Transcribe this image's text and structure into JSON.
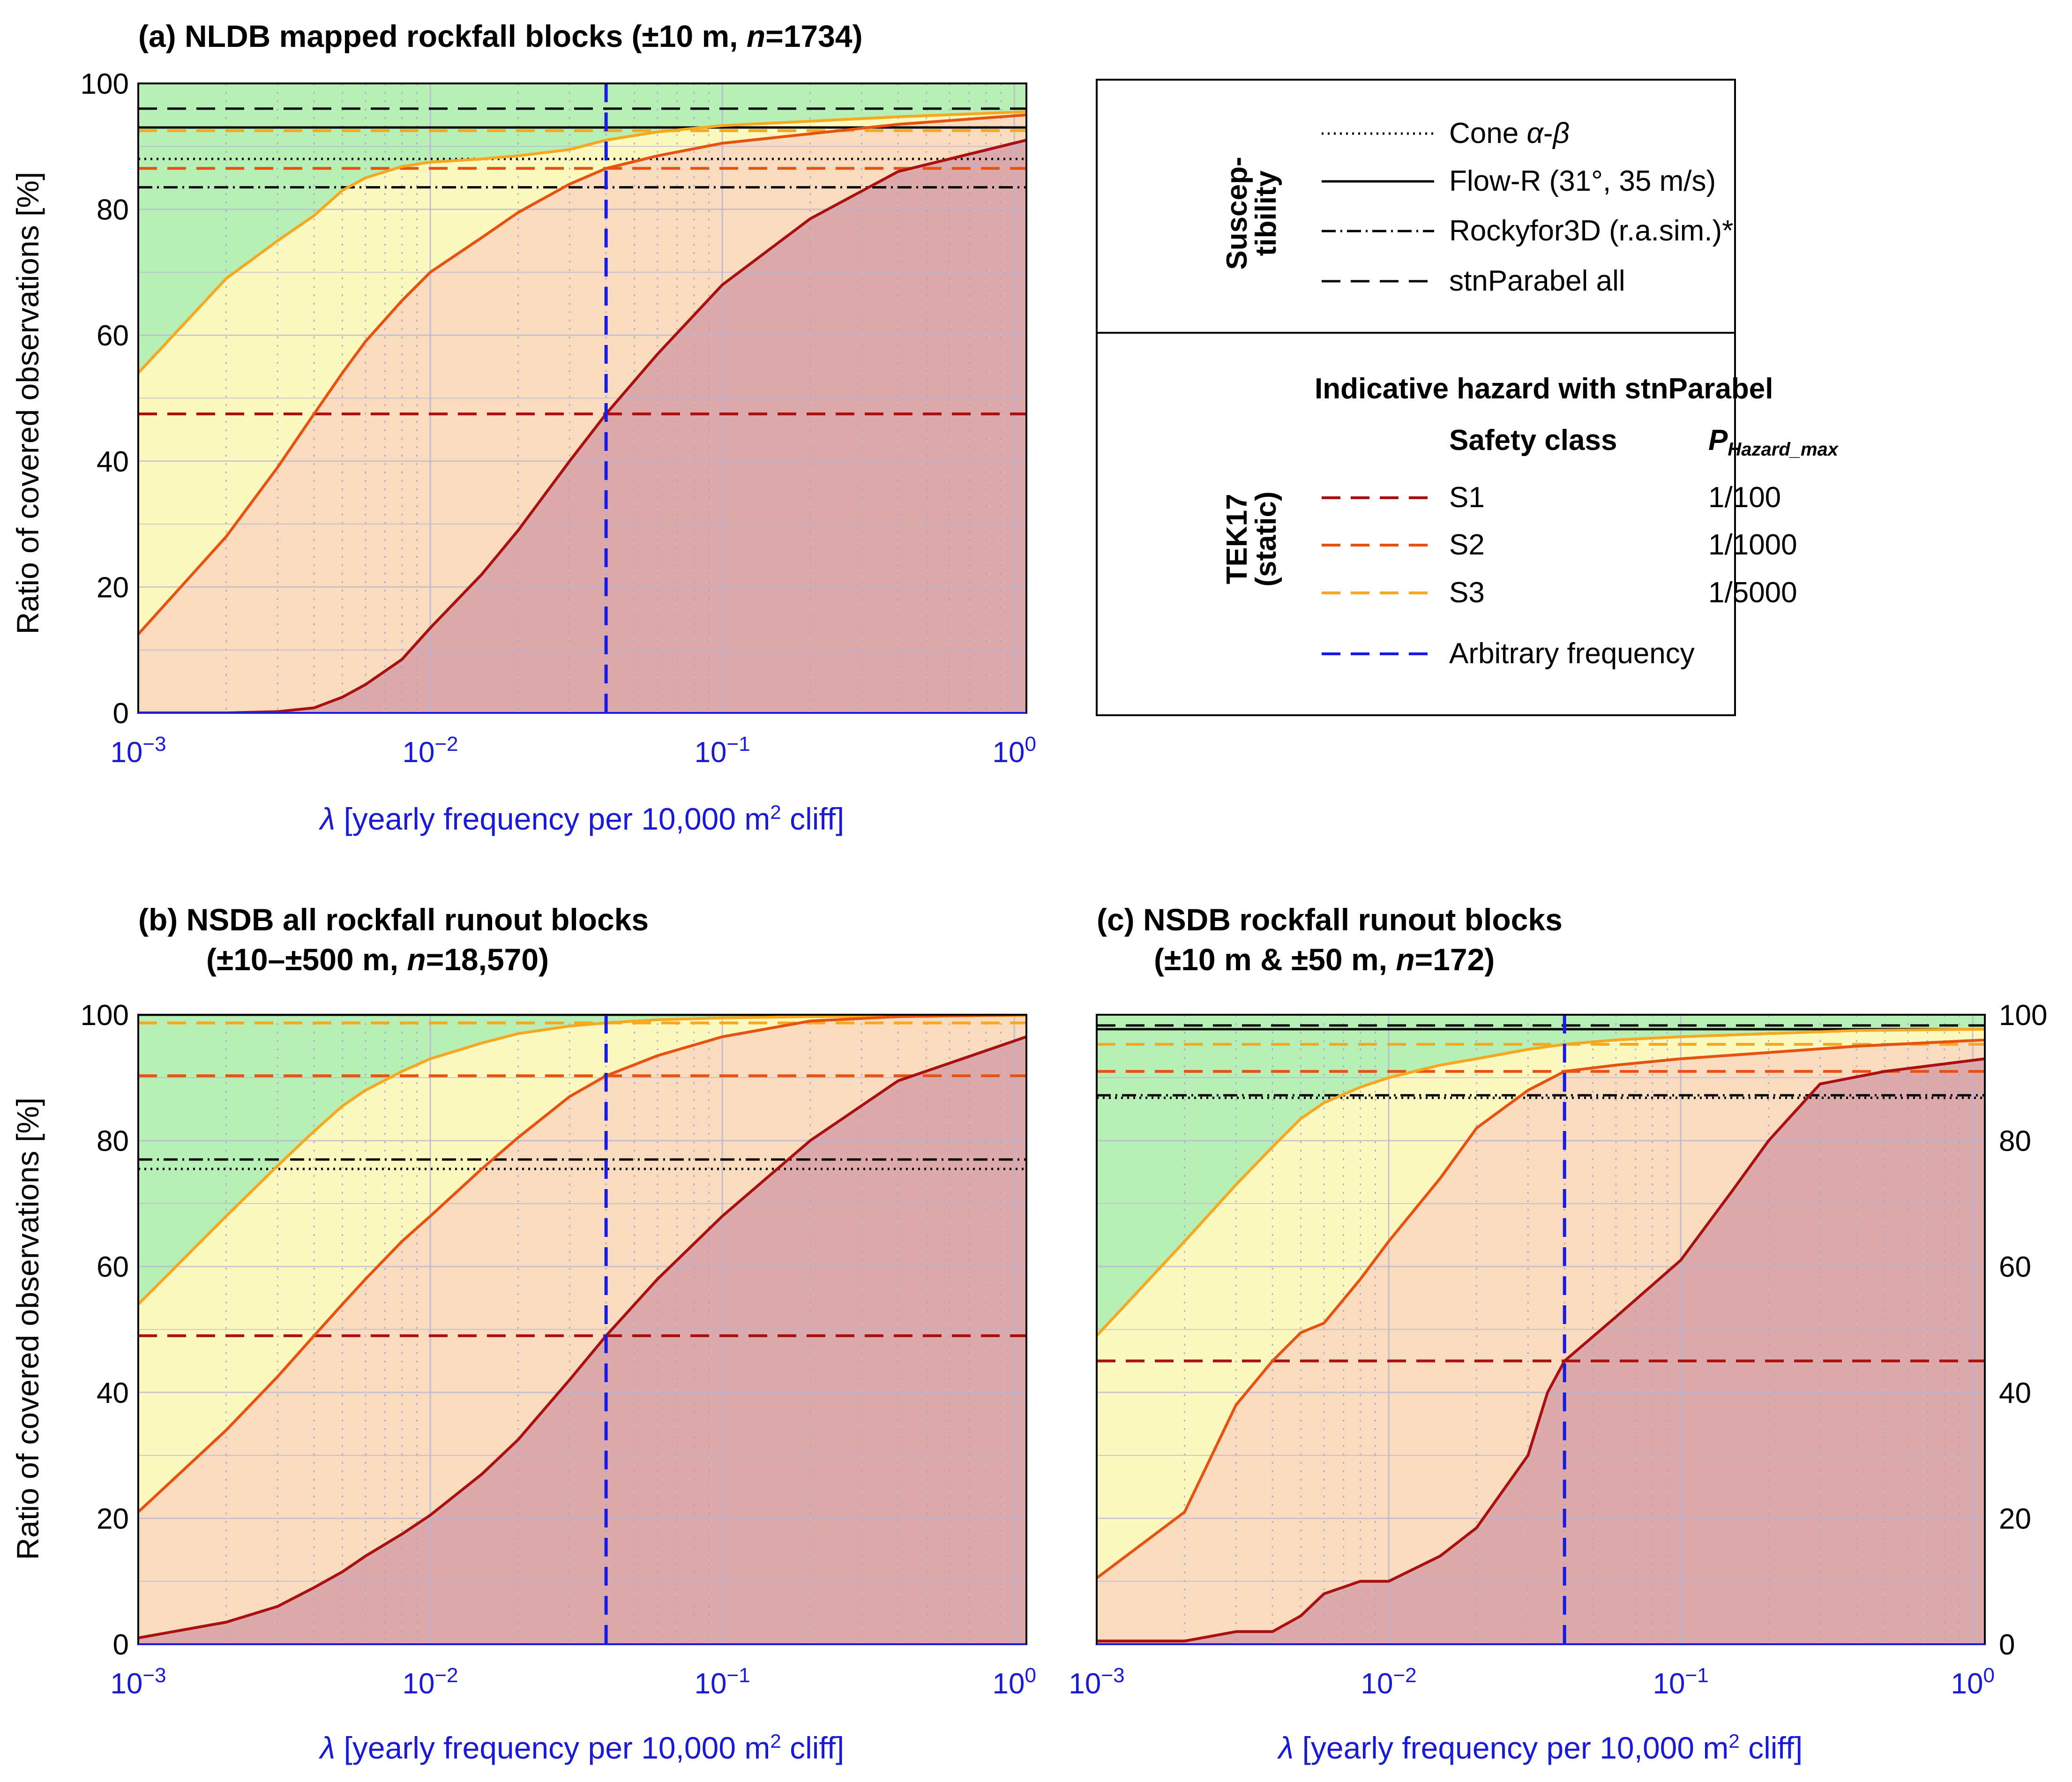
{
  "colors": {
    "green": "#b7efb7",
    "yellow": "#fbf9c0",
    "orange_fill": "#f9dcc0",
    "red_fill": "#dcaaaa",
    "s1": "#aa1010",
    "s2": "#e8520f",
    "s3": "#f7a81e",
    "blue": "#1a1ae6",
    "black": "#000000"
  },
  "x_axis": {
    "label_prefix": "λ",
    "label_main": "[yearly frequency per 10,000 m",
    "label_sup": "2",
    "label_end": " cliff]",
    "tick_base": "10",
    "tick_exponents": [
      "−3",
      "−2",
      "−1",
      "0"
    ]
  },
  "y_axis": {
    "label": "Ratio of covered observations [%]",
    "ticks": [
      "0",
      "20",
      "40",
      "60",
      "80",
      "100"
    ]
  },
  "legend": {
    "group1_label_line1": "Suscep-",
    "group1_label_line2": "tibility",
    "group2_label_line1": "TEK17",
    "group2_label_line2": "(static)",
    "cone_label": "Cone ",
    "cone_alpha": "α",
    "cone_dash": "-",
    "cone_beta": "β",
    "flowr_label": "Flow-R (31°, 35 m/s)",
    "rocky_label": "Rockyfor3D (r.a.sim.)*",
    "stn_label": "stnParabel all",
    "hazard_title": "Indicative hazard with stnParabel",
    "safety_header": "Safety class",
    "p_header_main": "P",
    "p_header_sub": "Hazard_max",
    "s1_label": "S1",
    "s1_p": "1/100",
    "s2_label": "S2",
    "s2_p": "1/1000",
    "s3_label": "S3",
    "s3_p": "1/5000",
    "arb_label": "Arbitrary frequency"
  },
  "chart_data": [
    {
      "id": "a",
      "type": "line",
      "title_prefix": "(a) NLDB mapped rockfall blocks (±10 m, ",
      "title_n": "n",
      "title_suffix": "=1734)",
      "title_line2": "",
      "xscale": "log",
      "xlim": [
        0.001,
        1.1
      ],
      "ylim": [
        0,
        100
      ],
      "arbitrary_frequency": 0.04,
      "susceptibility": {
        "cone": 88,
        "flowr": 93,
        "rocky": 83.5,
        "stn_all": 96
      },
      "safety_levels": {
        "S1": 47.5,
        "S2": 86.5,
        "S3": 92.5
      },
      "series": [
        {
          "name": "S3",
          "x": [
            0.001,
            0.002,
            0.003,
            0.004,
            0.005,
            0.006,
            0.008,
            0.01,
            0.015,
            0.02,
            0.03,
            0.04,
            0.06,
            0.1,
            0.2,
            0.4,
            1.1
          ],
          "y": [
            54,
            69,
            75,
            79,
            83,
            85,
            86.8,
            87.5,
            88,
            88.5,
            89.5,
            91,
            92.3,
            93.3,
            94,
            94.7,
            95.5
          ]
        },
        {
          "name": "S2",
          "x": [
            0.001,
            0.002,
            0.003,
            0.004,
            0.005,
            0.006,
            0.008,
            0.01,
            0.015,
            0.02,
            0.03,
            0.04,
            0.06,
            0.1,
            0.2,
            0.4,
            1.1
          ],
          "y": [
            12.5,
            28,
            39,
            47.5,
            54,
            59,
            65.5,
            70,
            75.5,
            79.5,
            84,
            86.5,
            88.5,
            90.5,
            92,
            93.5,
            95
          ]
        },
        {
          "name": "S1",
          "x": [
            0.001,
            0.002,
            0.003,
            0.004,
            0.005,
            0.006,
            0.008,
            0.01,
            0.015,
            0.02,
            0.03,
            0.04,
            0.06,
            0.1,
            0.2,
            0.4,
            1.1
          ],
          "y": [
            0,
            0,
            0.2,
            0.8,
            2.5,
            4.5,
            8.5,
            13.5,
            22,
            29,
            40,
            47.5,
            57,
            68,
            78.5,
            86,
            91
          ]
        }
      ],
      "right_ticks": false
    },
    {
      "id": "b",
      "type": "line",
      "title_prefix": "(b) NSDB all rockfall runout blocks",
      "title_n": "n",
      "title_suffix": "=18,570)",
      "title_line2_prefix": "(±10–±500 m, ",
      "title_line2": "yes",
      "xscale": "log",
      "xlim": [
        0.001,
        1.1
      ],
      "ylim": [
        0,
        100
      ],
      "arbitrary_frequency": 0.04,
      "susceptibility": {
        "cone": 75.5,
        "flowr": 100,
        "rocky": 77,
        "stn_all": 100
      },
      "safety_levels": {
        "S1": 49,
        "S2": 90.3,
        "S3": 98.7
      },
      "series": [
        {
          "name": "S3",
          "x": [
            0.001,
            0.002,
            0.003,
            0.004,
            0.005,
            0.006,
            0.008,
            0.01,
            0.015,
            0.02,
            0.03,
            0.04,
            0.06,
            0.1,
            0.2,
            0.4,
            1.1
          ],
          "y": [
            54,
            68,
            76,
            81.5,
            85.5,
            88,
            91,
            93,
            95.5,
            97,
            98.2,
            98.7,
            99.2,
            99.5,
            99.7,
            99.8,
            99.9
          ]
        },
        {
          "name": "S2",
          "x": [
            0.001,
            0.002,
            0.003,
            0.004,
            0.005,
            0.006,
            0.008,
            0.01,
            0.015,
            0.02,
            0.03,
            0.04,
            0.06,
            0.1,
            0.2,
            0.4,
            1.1
          ],
          "y": [
            21,
            34,
            42.5,
            49,
            54,
            58,
            64,
            68,
            75.5,
            80.5,
            87,
            90.3,
            93.5,
            96.5,
            99,
            99.7,
            100
          ]
        },
        {
          "name": "S1",
          "x": [
            0.001,
            0.002,
            0.003,
            0.004,
            0.005,
            0.006,
            0.008,
            0.01,
            0.015,
            0.02,
            0.03,
            0.04,
            0.06,
            0.1,
            0.2,
            0.4,
            1.1
          ],
          "y": [
            1,
            3.5,
            6,
            9,
            11.5,
            14,
            17.5,
            20.5,
            27,
            32.5,
            42,
            49,
            58,
            68,
            80,
            89.5,
            96.5
          ]
        }
      ],
      "right_ticks": false
    },
    {
      "id": "c",
      "type": "line",
      "title_prefix": "(c) NSDB rockfall runout blocks",
      "title_n": "n",
      "title_suffix": "=172)",
      "title_line2_prefix": "(±10 m & ±50 m, ",
      "title_line2": "yes",
      "xscale": "log",
      "xlim": [
        0.001,
        1.1
      ],
      "ylim": [
        0,
        100
      ],
      "arbitrary_frequency": 0.04,
      "susceptibility": {
        "cone": 86.8,
        "flowr": 97.7,
        "rocky": 87.2,
        "stn_all": 98.3
      },
      "safety_levels": {
        "S1": 45,
        "S2": 91,
        "S3": 95.3
      },
      "series": [
        {
          "name": "S3",
          "x": [
            0.001,
            0.002,
            0.003,
            0.004,
            0.005,
            0.006,
            0.008,
            0.01,
            0.015,
            0.02,
            0.03,
            0.04,
            0.06,
            0.1,
            0.2,
            0.4,
            1.1
          ],
          "y": [
            49,
            64,
            73,
            79,
            83.5,
            86,
            88.5,
            90,
            92,
            93,
            94.5,
            95.3,
            96,
            96.5,
            97,
            97.5,
            97.7
          ]
        },
        {
          "name": "S2",
          "x": [
            0.001,
            0.002,
            0.003,
            0.004,
            0.005,
            0.006,
            0.008,
            0.01,
            0.015,
            0.02,
            0.03,
            0.04,
            0.06,
            0.1,
            0.2,
            0.4,
            1.1
          ],
          "y": [
            10.5,
            21,
            38,
            45,
            49.5,
            51,
            58,
            64,
            74,
            82,
            88,
            91,
            92,
            93,
            94,
            95,
            96
          ]
        },
        {
          "name": "S1",
          "x": [
            0.001,
            0.002,
            0.003,
            0.004,
            0.005,
            0.006,
            0.008,
            0.01,
            0.015,
            0.02,
            0.03,
            0.035,
            0.04,
            0.06,
            0.1,
            0.15,
            0.2,
            0.3,
            0.5,
            1.1
          ],
          "y": [
            0.5,
            0.5,
            2,
            2,
            4.5,
            8,
            10,
            10,
            14,
            18.5,
            30,
            40,
            45,
            52,
            61,
            72,
            80,
            89,
            91,
            93
          ]
        }
      ],
      "right_ticks": true
    }
  ]
}
